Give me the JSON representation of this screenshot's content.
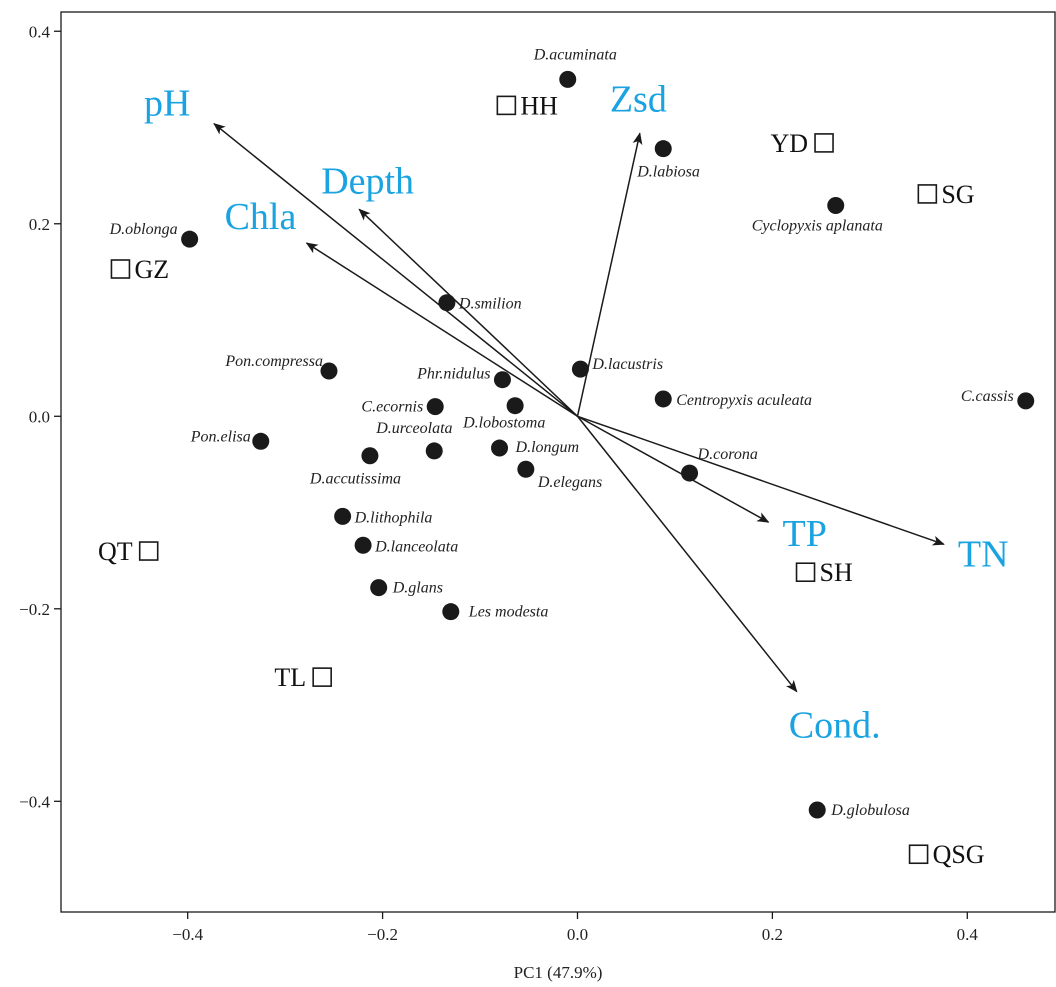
{
  "chart_data": {
    "type": "scatter",
    "title": "",
    "xlabel": "PC1 (47.9%)",
    "ylabel": "",
    "xlim": [
      -0.53,
      0.49
    ],
    "ylim": [
      -0.515,
      0.42
    ],
    "x_ticks": [
      -0.4,
      -0.2,
      0.0,
      0.2,
      0.4
    ],
    "x_tick_labels": [
      "−0.4",
      "−0.2",
      "0.0",
      "0.2",
      "0.4"
    ],
    "y_ticks": [
      -0.4,
      -0.2,
      0.0,
      0.2,
      0.4
    ],
    "y_tick_labels": [
      "−0.4",
      "−0.2",
      "0.0",
      "0.2",
      "0.4"
    ],
    "grid": false,
    "env_color": "#1aa3e0",
    "point_color": "#1a1a1a",
    "species": [
      {
        "name": "D.acuminata",
        "x": -0.01,
        "y": 0.35
      },
      {
        "name": "D.labiosa",
        "x": 0.088,
        "y": 0.278
      },
      {
        "name": "Cyclopyxis aplanata",
        "x": 0.265,
        "y": 0.219
      },
      {
        "name": "D.oblonga",
        "x": -0.398,
        "y": 0.184
      },
      {
        "name": "D.smilion",
        "x": -0.134,
        "y": 0.118
      },
      {
        "name": "Pon.compressa",
        "x": -0.255,
        "y": 0.047
      },
      {
        "name": "Phr.nidulus",
        "x": -0.077,
        "y": 0.038
      },
      {
        "name": "D.lacustris",
        "x": 0.003,
        "y": 0.049
      },
      {
        "name": "Centropyxis aculeata",
        "x": 0.088,
        "y": 0.018
      },
      {
        "name": "C.cassis",
        "x": 0.46,
        "y": 0.016
      },
      {
        "name": "C.ecornis",
        "x": -0.146,
        "y": 0.01
      },
      {
        "name": "D.lobostoma",
        "x": -0.064,
        "y": 0.011
      },
      {
        "name": "Pon.elisa",
        "x": -0.325,
        "y": -0.026
      },
      {
        "name": "D.urceolata",
        "x": -0.147,
        "y": -0.036
      },
      {
        "name": "D.accutissima",
        "x": -0.213,
        "y": -0.041
      },
      {
        "name": "D.longum",
        "x": -0.08,
        "y": -0.033
      },
      {
        "name": "D.elegans",
        "x": -0.053,
        "y": -0.055
      },
      {
        "name": "D.corona",
        "x": 0.115,
        "y": -0.059
      },
      {
        "name": "D.lithophila",
        "x": -0.241,
        "y": -0.104
      },
      {
        "name": "D.lanceolata",
        "x": -0.22,
        "y": -0.134
      },
      {
        "name": "D.glans",
        "x": -0.204,
        "y": -0.178
      },
      {
        "name": "Les modesta",
        "x": -0.13,
        "y": -0.203
      },
      {
        "name": "D.globulosa",
        "x": 0.246,
        "y": -0.409
      }
    ],
    "sites": [
      {
        "name": "HH",
        "x": -0.073,
        "y": 0.323
      },
      {
        "name": "YD",
        "x": 0.253,
        "y": 0.284
      },
      {
        "name": "SG",
        "x": 0.359,
        "y": 0.231
      },
      {
        "name": "GZ",
        "x": -0.469,
        "y": 0.153
      },
      {
        "name": "QT",
        "x": -0.44,
        "y": -0.14
      },
      {
        "name": "SH",
        "x": 0.234,
        "y": -0.162
      },
      {
        "name": "TL",
        "x": -0.262,
        "y": -0.271
      },
      {
        "name": "QSG",
        "x": 0.35,
        "y": -0.455
      }
    ],
    "env_vectors": [
      {
        "name": "pH",
        "x": -0.373,
        "y": 0.304
      },
      {
        "name": "Zsd",
        "x": 0.064,
        "y": 0.294
      },
      {
        "name": "Depth",
        "x": -0.224,
        "y": 0.215
      },
      {
        "name": "Chla",
        "x": -0.278,
        "y": 0.18
      },
      {
        "name": "TP",
        "x": 0.196,
        "y": -0.11
      },
      {
        "name": "TN",
        "x": 0.376,
        "y": -0.133
      },
      {
        "name": "Cond.",
        "x": 0.225,
        "y": -0.286
      }
    ]
  }
}
